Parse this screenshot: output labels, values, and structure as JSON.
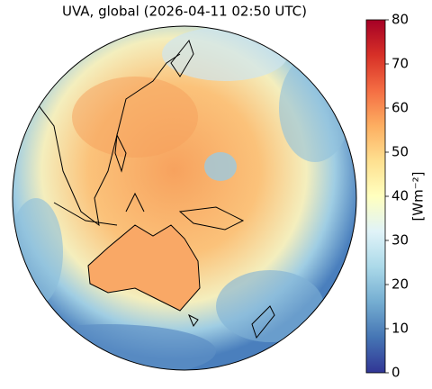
{
  "title": "UVA, global (2026-04-11 02:50 UTC)",
  "colorbar": {
    "label": "[Wm⁻²]",
    "lim": [
      0,
      80
    ],
    "ticks": [
      0,
      10,
      20,
      30,
      40,
      50,
      60,
      70,
      80
    ],
    "colors": [
      "#313695",
      "#4575b4",
      "#74add1",
      "#abd9e9",
      "#e0f3f8",
      "#ffffbf",
      "#fee090",
      "#fdae61",
      "#f46d43",
      "#d73027",
      "#a50026"
    ]
  }
}
